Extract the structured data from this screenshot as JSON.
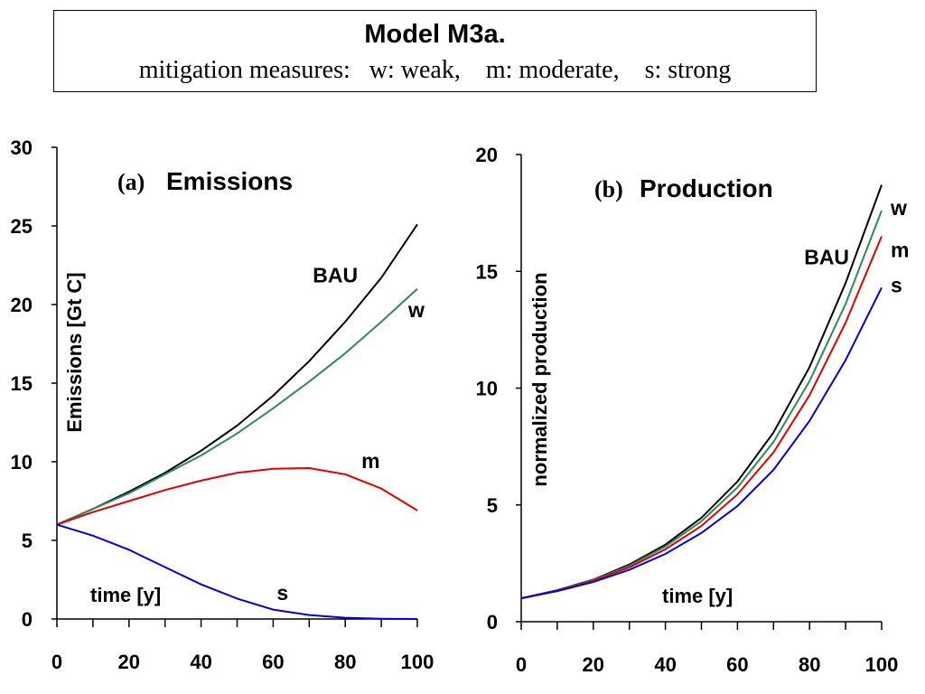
{
  "header": {
    "title": "Model  M3a.",
    "subtitle": "mitigation measures:   w: weak,    m: moderate,    s: strong"
  },
  "chart_data": [
    {
      "id": "a",
      "type": "line",
      "title_prefix": "(a)",
      "title": "Emissions",
      "ylabel": "Emissions [Gt C]",
      "xlabel": "time [y]",
      "xlim": [
        0,
        100
      ],
      "ylim": [
        0,
        30
      ],
      "xticks": [
        0,
        20,
        40,
        60,
        80,
        100
      ],
      "yticks": [
        0,
        5,
        10,
        15,
        20,
        25,
        30
      ],
      "grid": false,
      "x": [
        0,
        10,
        20,
        30,
        40,
        50,
        60,
        70,
        80,
        90,
        100
      ],
      "series": [
        {
          "name": "BAU",
          "color": "#000000",
          "values": [
            6.0,
            7.0,
            8.1,
            9.3,
            10.7,
            12.3,
            14.2,
            16.4,
            18.9,
            21.7,
            25.1
          ]
        },
        {
          "name": "w",
          "color": "#2e8b57",
          "values": [
            6.0,
            7.0,
            8.0,
            9.2,
            10.4,
            11.8,
            13.4,
            15.1,
            16.9,
            18.9,
            21.0
          ]
        },
        {
          "name": "m",
          "color": "#e00000",
          "values": [
            6.0,
            6.8,
            7.5,
            8.2,
            8.8,
            9.3,
            9.55,
            9.6,
            9.2,
            8.3,
            6.9
          ]
        },
        {
          "name": "s",
          "color": "#0000dd",
          "values": [
            6.0,
            5.3,
            4.4,
            3.3,
            2.2,
            1.3,
            0.6,
            0.25,
            0.08,
            0.02,
            0.0
          ]
        }
      ],
      "annotations": [
        {
          "text": "BAU",
          "x": 71,
          "y": 21.4
        },
        {
          "text": "w",
          "x": 97.5,
          "y": 19.2
        },
        {
          "text": "m",
          "x": 84.5,
          "y": 9.6
        },
        {
          "text": "s",
          "x": 61,
          "y": 1.2
        }
      ]
    },
    {
      "id": "b",
      "type": "line",
      "title_prefix": "(b)",
      "title": "Production",
      "ylabel": "normalized production",
      "xlabel": "time [y]",
      "xlim": [
        0,
        100
      ],
      "ylim": [
        0,
        20
      ],
      "xticks": [
        0,
        20,
        40,
        60,
        80,
        100
      ],
      "yticks": [
        0,
        5,
        10,
        15,
        20
      ],
      "grid": false,
      "x": [
        0,
        10,
        20,
        30,
        40,
        50,
        60,
        70,
        80,
        90,
        100
      ],
      "series": [
        {
          "name": "BAU",
          "color": "#000000",
          "values": [
            1.0,
            1.35,
            1.8,
            2.45,
            3.3,
            4.45,
            6.0,
            8.1,
            10.9,
            14.5,
            18.7
          ]
        },
        {
          "name": "w",
          "color": "#2e8b57",
          "values": [
            1.0,
            1.34,
            1.78,
            2.4,
            3.22,
            4.3,
            5.75,
            7.7,
            10.3,
            13.6,
            17.6
          ]
        },
        {
          "name": "m",
          "color": "#e00000",
          "values": [
            1.0,
            1.33,
            1.75,
            2.33,
            3.1,
            4.1,
            5.45,
            7.25,
            9.7,
            12.8,
            16.5
          ]
        },
        {
          "name": "s",
          "color": "#0000dd",
          "values": [
            1.0,
            1.31,
            1.7,
            2.22,
            2.9,
            3.8,
            4.95,
            6.5,
            8.6,
            11.2,
            14.3
          ]
        }
      ],
      "annotations": [
        {
          "text": "BAU",
          "x": 78.5,
          "y": 15.3
        },
        {
          "text": "w",
          "x": 102.5,
          "y": 17.4
        },
        {
          "text": "m",
          "x": 102.5,
          "y": 15.6
        },
        {
          "text": "s",
          "x": 102.5,
          "y": 14.1
        }
      ]
    }
  ]
}
